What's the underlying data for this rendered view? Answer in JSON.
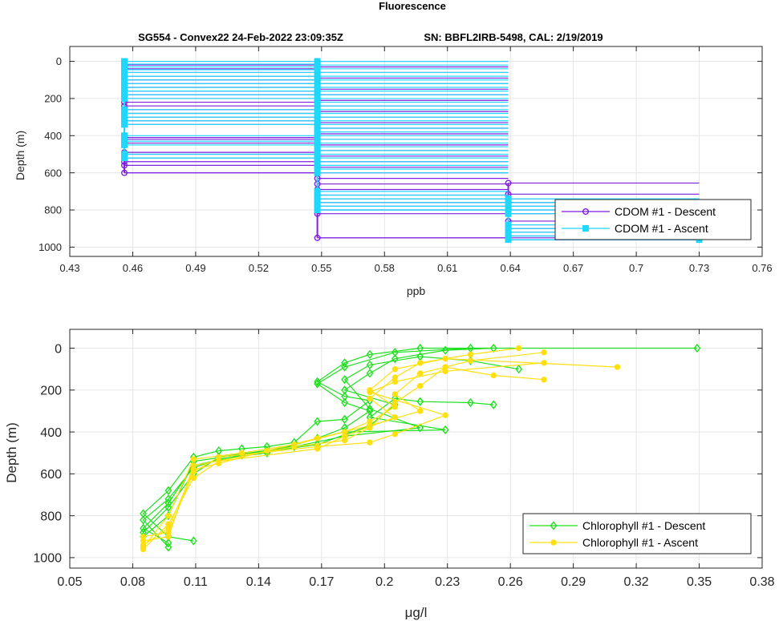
{
  "figure": {
    "title": "Fluorescence",
    "subtitle_left": "SG554 - Convex22 24-Feb-2022 23:09:35Z",
    "subtitle_right": "SN: BBFL2IRB-5498, CAL: 2/19/2019"
  },
  "colors": {
    "cdom_descent": "#7f1fdf",
    "cdom_ascent": "#1fd7ff",
    "chl_descent": "#1fe01f",
    "chl_ascent": "#ffe00f",
    "grid": "#e6e6e6",
    "axis": "#262626"
  },
  "chart_data": [
    {
      "type": "line",
      "xlabel": "ppb",
      "ylabel": "Depth (m)",
      "xlim": [
        0.43,
        0.76
      ],
      "ylim": [
        1050,
        -80
      ],
      "y_reversed": true,
      "xticks": [
        "0.43",
        "0.46",
        "0.49",
        "0.52",
        "0.55",
        "0.58",
        "0.61",
        "0.64",
        "0.67",
        "0.7",
        "0.73",
        "0.76"
      ],
      "xtick_values": [
        0.43,
        0.46,
        0.49,
        0.52,
        0.55,
        0.58,
        0.61,
        0.64,
        0.67,
        0.7,
        0.73,
        0.76
      ],
      "yticks": [
        "0",
        "200",
        "400",
        "600",
        "800",
        "1000"
      ],
      "ytick_values": [
        0,
        200,
        400,
        600,
        800,
        1000
      ],
      "grid": true,
      "legend_position": "lower-right",
      "series": [
        {
          "name": "CDOM #1 - Descent",
          "marker": "circle",
          "levels": [
            {
              "x": 0.456,
              "depths": [
                0,
                20,
                40,
                60,
                80,
                100,
                120,
                140,
                160,
                180,
                200,
                220,
                240,
                260,
                280,
                300,
                320,
                340,
                410,
                420,
                440,
                490,
                500,
                520,
                540,
                560,
                600
              ]
            },
            {
              "x": 0.548,
              "depths": [
                0,
                30,
                60,
                90,
                120,
                150,
                180,
                210,
                240,
                270,
                300,
                330,
                360,
                390,
                420,
                450,
                480,
                510,
                540,
                570,
                600,
                630,
                660,
                690,
                720,
                740,
                760,
                780,
                800,
                820,
                950
              ]
            },
            {
              "x": 0.639,
              "depths": [
                655,
                715,
                740,
                760,
                780,
                800,
                820,
                860,
                880,
                900,
                920,
                940,
                950,
                960
              ]
            },
            {
              "x": 0.73,
              "depths": [
                880,
                900,
                920,
                940,
                960
              ]
            }
          ]
        },
        {
          "name": "CDOM #1 - Ascent",
          "marker": "square",
          "levels": [
            {
              "x": 0.456,
              "depths": [
                0,
                15,
                30,
                45,
                60,
                80,
                100,
                120,
                140,
                160,
                180,
                200,
                260,
                280,
                300,
                320,
                340,
                400,
                430,
                450,
                500,
                520
              ]
            },
            {
              "x": 0.548,
              "depths": [
                0,
                20,
                40,
                60,
                80,
                100,
                120,
                140,
                160,
                180,
                200,
                220,
                240,
                260,
                280,
                300,
                320,
                340,
                360,
                380,
                400,
                420,
                440,
                460,
                480,
                500,
                520,
                540,
                560,
                580,
                600,
                700,
                720,
                740,
                760,
                780,
                800
              ]
            },
            {
              "x": 0.639,
              "depths": [
                740,
                760,
                780,
                800,
                820,
                880,
                900,
                920,
                940,
                960
              ]
            },
            {
              "x": 0.73,
              "depths": [
                870,
                890,
                910,
                930,
                950,
                960
              ]
            }
          ]
        }
      ]
    },
    {
      "type": "line",
      "xlabel": "μg/l",
      "ylabel": "Depth (m)",
      "xlim": [
        0.05,
        0.38
      ],
      "ylim": [
        1050,
        -90
      ],
      "y_reversed": true,
      "xticks": [
        "0.05",
        "0.08",
        "0.11",
        "0.14",
        "0.17",
        "0.2",
        "0.23",
        "0.26",
        "0.29",
        "0.32",
        "0.35",
        "0.38"
      ],
      "xtick_values": [
        0.05,
        0.08,
        0.11,
        0.14,
        0.17,
        0.2,
        0.23,
        0.26,
        0.29,
        0.32,
        0.35,
        0.38
      ],
      "yticks": [
        "0",
        "200",
        "400",
        "600",
        "800",
        "1000"
      ],
      "ytick_values": [
        0,
        200,
        400,
        600,
        800,
        1000
      ],
      "grid": true,
      "legend_position": "lower-right",
      "series": [
        {
          "name": "Chlorophyll #1 - Descent",
          "marker": "diamond",
          "profiles": [
            [
              [
                0.349,
                0
              ],
              [
                0.217,
                0
              ],
              [
                0.193,
                30
              ],
              [
                0.181,
                70
              ],
              [
                0.168,
                160
              ],
              [
                0.181,
                230
              ],
              [
                0.193,
                250
              ],
              [
                0.181,
                340
              ],
              [
                0.168,
                350
              ],
              [
                0.157,
                450
              ],
              [
                0.144,
                470
              ],
              [
                0.132,
                480
              ],
              [
                0.121,
                490
              ],
              [
                0.109,
                520
              ],
              [
                0.097,
                680
              ],
              [
                0.085,
                790
              ],
              [
                0.097,
                900
              ],
              [
                0.109,
                920
              ]
            ],
            [
              [
                0.241,
                0
              ],
              [
                0.205,
                20
              ],
              [
                0.181,
                90
              ],
              [
                0.168,
                170
              ],
              [
                0.181,
                260
              ],
              [
                0.193,
                300
              ],
              [
                0.181,
                380
              ],
              [
                0.168,
                430
              ],
              [
                0.144,
                500
              ],
              [
                0.121,
                530
              ],
              [
                0.109,
                570
              ],
              [
                0.097,
                720
              ],
              [
                0.085,
                820
              ],
              [
                0.097,
                950
              ]
            ],
            [
              [
                0.252,
                0
              ],
              [
                0.229,
                10
              ],
              [
                0.205,
                50
              ],
              [
                0.193,
                120
              ],
              [
                0.181,
                200
              ],
              [
                0.205,
                270
              ],
              [
                0.193,
                370
              ],
              [
                0.168,
                460
              ],
              [
                0.132,
                510
              ],
              [
                0.109,
                560
              ],
              [
                0.097,
                740
              ],
              [
                0.085,
                860
              ],
              [
                0.097,
                930
              ]
            ],
            [
              [
                0.264,
                100
              ],
              [
                0.241,
                60
              ],
              [
                0.217,
                40
              ],
              [
                0.193,
                80
              ],
              [
                0.181,
                150
              ],
              [
                0.193,
                290
              ],
              [
                0.217,
                380
              ],
              [
                0.181,
                420
              ],
              [
                0.157,
                470
              ],
              [
                0.121,
                520
              ],
              [
                0.109,
                600
              ],
              [
                0.097,
                760
              ],
              [
                0.085,
                880
              ]
            ],
            [
              [
                0.252,
                270
              ],
              [
                0.241,
                260
              ],
              [
                0.217,
                255
              ],
              [
                0.205,
                240
              ],
              [
                0.193,
                330
              ],
              [
                0.229,
                390
              ],
              [
                0.181,
                400
              ],
              [
                0.144,
                490
              ],
              [
                0.109,
                540
              ],
              [
                0.097,
                800
              ],
              [
                0.085,
                900
              ]
            ]
          ]
        },
        {
          "name": "Chlorophyll #1 - Ascent",
          "marker": "dot",
          "profiles": [
            [
              [
                0.311,
                90
              ],
              [
                0.229,
                50
              ],
              [
                0.205,
                100
              ],
              [
                0.193,
                200
              ],
              [
                0.205,
                280
              ],
              [
                0.193,
                350
              ],
              [
                0.181,
                400
              ],
              [
                0.157,
                460
              ],
              [
                0.132,
                500
              ],
              [
                0.109,
                530
              ],
              [
                0.097,
                800
              ],
              [
                0.085,
                950
              ]
            ],
            [
              [
                0.276,
                20
              ],
              [
                0.241,
                60
              ],
              [
                0.217,
                120
              ],
              [
                0.205,
                220
              ],
              [
                0.217,
                300
              ],
              [
                0.193,
                370
              ],
              [
                0.168,
                430
              ],
              [
                0.144,
                490
              ],
              [
                0.121,
                550
              ],
              [
                0.109,
                580
              ],
              [
                0.097,
                860
              ],
              [
                0.085,
                940
              ]
            ],
            [
              [
                0.276,
                150
              ],
              [
                0.252,
                130
              ],
              [
                0.229,
                90
              ],
              [
                0.217,
                180
              ],
              [
                0.205,
                260
              ],
              [
                0.193,
                380
              ],
              [
                0.181,
                440
              ],
              [
                0.157,
                470
              ],
              [
                0.109,
                560
              ],
              [
                0.097,
                900
              ],
              [
                0.085,
                920
              ]
            ],
            [
              [
                0.264,
                0
              ],
              [
                0.241,
                30
              ],
              [
                0.217,
                70
              ],
              [
                0.205,
                140
              ],
              [
                0.193,
                240
              ],
              [
                0.205,
                330
              ],
              [
                0.181,
                420
              ],
              [
                0.168,
                480
              ],
              [
                0.121,
                540
              ],
              [
                0.109,
                620
              ],
              [
                0.097,
                840
              ],
              [
                0.085,
                960
              ]
            ],
            [
              [
                0.276,
                70
              ],
              [
                0.229,
                110
              ],
              [
                0.205,
                160
              ],
              [
                0.193,
                210
              ],
              [
                0.229,
                320
              ],
              [
                0.205,
                410
              ],
              [
                0.193,
                450
              ],
              [
                0.168,
                470
              ],
              [
                0.121,
                520
              ],
              [
                0.109,
                590
              ],
              [
                0.097,
                880
              ],
              [
                0.085,
                900
              ]
            ]
          ]
        }
      ]
    }
  ]
}
